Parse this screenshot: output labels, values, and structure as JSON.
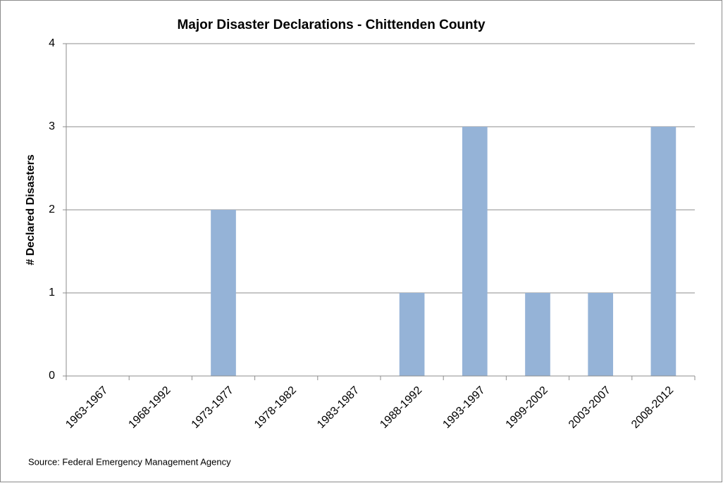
{
  "chart_data": {
    "type": "bar",
    "title": "Major Disaster Declarations - Chittenden County",
    "y_label": "# Declared Disasters",
    "source": "Source: Federal Emergency Management Agency",
    "categories": [
      "1963-1967",
      "1968-1992",
      "1973-1977",
      "1978-1982",
      "1983-1987",
      "1988-1992",
      "1993-1997",
      "1999-2002",
      "2003-2007",
      "2008-2012"
    ],
    "values": [
      0,
      0,
      2,
      0,
      0,
      1,
      3,
      1,
      1,
      3
    ],
    "color": "#95b3d7",
    "ylim": [
      0,
      4
    ],
    "yticks": [
      0,
      1,
      2,
      3,
      4
    ],
    "grid": true
  }
}
